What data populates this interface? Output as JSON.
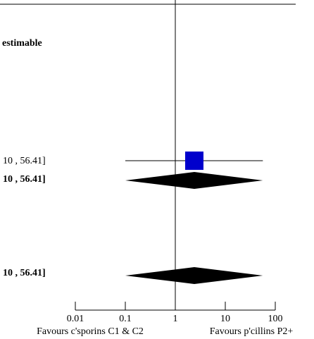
{
  "chart_data": {
    "type": "forest",
    "x_scale": "log",
    "xlim": [
      0.01,
      100
    ],
    "null_line": 1,
    "header_text": "estimable",
    "row_labels": [
      {
        "key": "study",
        "text": "10 , 56.41]",
        "bold": false
      },
      {
        "key": "subtotal",
        "text": "10 , 56.41]",
        "bold": true
      },
      {
        "key": "total",
        "text": "10 , 56.41]",
        "bold": true
      }
    ],
    "study": {
      "estimate": 2.4,
      "ci_low": 0.1,
      "ci_high": 56.41
    },
    "subtotal_diamond": {
      "estimate": 2.4,
      "ci_low": 0.1,
      "ci_high": 56.41
    },
    "total_diamond": {
      "estimate": 2.4,
      "ci_low": 0.1,
      "ci_high": 56.41
    },
    "x_ticks": [
      {
        "value": 0.01,
        "label": "0.01"
      },
      {
        "value": 0.1,
        "label": "0.1"
      },
      {
        "value": 1,
        "label": "1"
      },
      {
        "value": 10,
        "label": "10"
      },
      {
        "value": 100,
        "label": "100"
      }
    ],
    "favours_left": "Favours c'sporins C1 & C2",
    "favours_right": "Favours p'cillins P2+",
    "colors": {
      "study_marker": "#0000cc",
      "diamond": "#000000"
    }
  }
}
